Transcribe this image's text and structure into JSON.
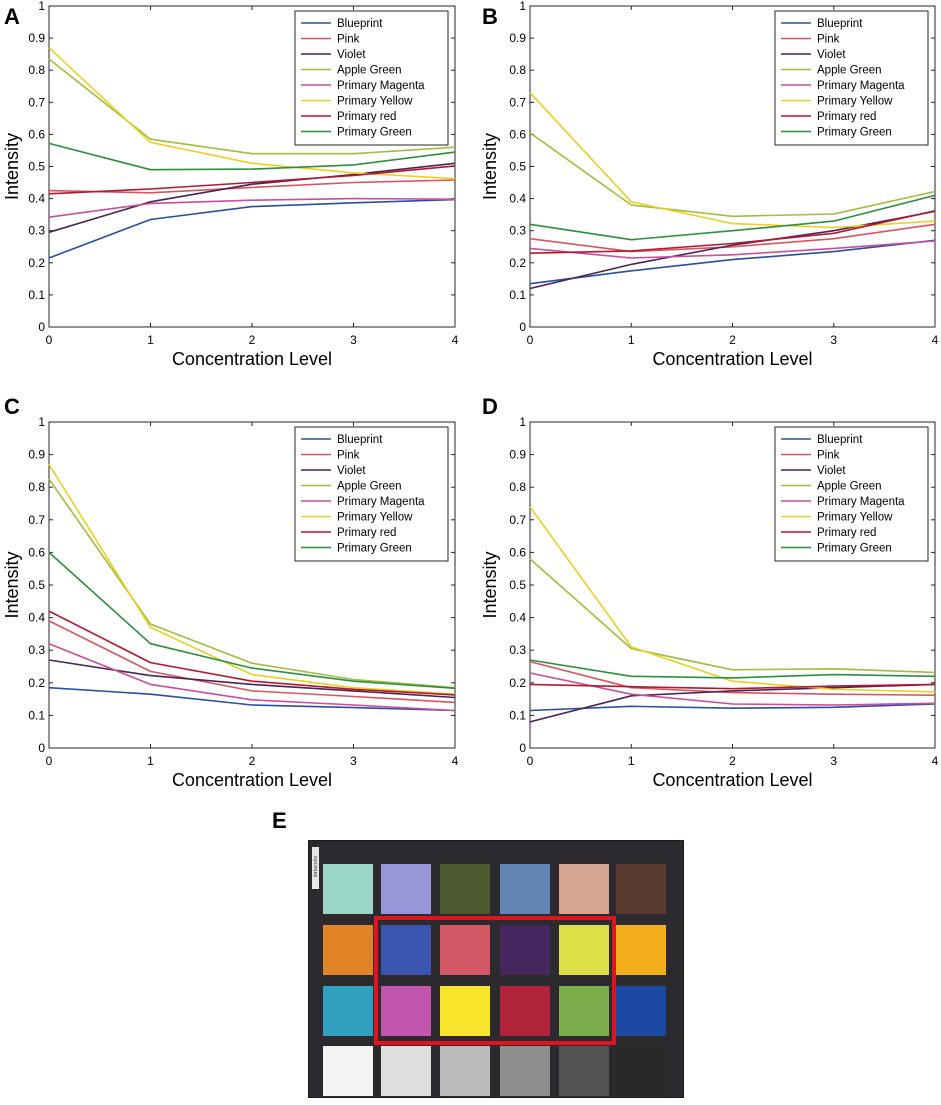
{
  "chart_data": [
    {
      "panel": "A",
      "type": "line",
      "xlabel": "Concentration Level",
      "ylabel": "Intensity",
      "x": [
        0,
        1,
        2,
        3,
        4
      ],
      "xlim": [
        0,
        4
      ],
      "ylim": [
        0,
        1
      ],
      "xticks": [
        "0",
        "1",
        "2",
        "3",
        "4"
      ],
      "yticks": [
        "0",
        "0.1",
        "0.2",
        "0.3",
        "0.4",
        "0.5",
        "0.6",
        "0.7",
        "0.8",
        "0.9",
        "1"
      ],
      "legend_position": "top-right",
      "series": [
        {
          "name": "Blueprint",
          "color": "#2b4ea0",
          "values": [
            0.215,
            0.335,
            0.375,
            0.387,
            0.397
          ]
        },
        {
          "name": "Pink",
          "color": "#d9545e",
          "values": [
            0.425,
            0.418,
            0.435,
            0.45,
            0.458
          ]
        },
        {
          "name": "Violet",
          "color": "#4a2356",
          "values": [
            0.295,
            0.39,
            0.445,
            0.475,
            0.51
          ]
        },
        {
          "name": "Apple Green",
          "color": "#9fbe3c",
          "values": [
            0.835,
            0.585,
            0.54,
            0.54,
            0.56
          ]
        },
        {
          "name": "Primary Magenta",
          "color": "#cc4c9e",
          "values": [
            0.342,
            0.385,
            0.395,
            0.4,
            0.398
          ]
        },
        {
          "name": "Primary Yellow",
          "color": "#ead020",
          "values": [
            0.87,
            0.575,
            0.51,
            0.48,
            0.462
          ]
        },
        {
          "name": "Primary red",
          "color": "#b5172f",
          "values": [
            0.415,
            0.43,
            0.45,
            0.472,
            0.502
          ]
        },
        {
          "name": "Primary Green",
          "color": "#2c8f3d",
          "values": [
            0.572,
            0.49,
            0.492,
            0.505,
            0.545
          ]
        }
      ]
    },
    {
      "panel": "B",
      "type": "line",
      "xlabel": "Concentration Level",
      "ylabel": "Intensity",
      "x": [
        0,
        1,
        2,
        3,
        4
      ],
      "xlim": [
        0,
        4
      ],
      "ylim": [
        0,
        1
      ],
      "xticks": [
        "0",
        "1",
        "2",
        "3",
        "4"
      ],
      "yticks": [
        "0",
        "0.1",
        "0.2",
        "0.3",
        "0.4",
        "0.5",
        "0.6",
        "0.7",
        "0.8",
        "0.9",
        "1"
      ],
      "legend_position": "top-right",
      "series": [
        {
          "name": "Blueprint",
          "color": "#2b4ea0",
          "values": [
            0.135,
            0.175,
            0.21,
            0.235,
            0.27
          ]
        },
        {
          "name": "Pink",
          "color": "#d9545e",
          "values": [
            0.275,
            0.235,
            0.25,
            0.275,
            0.32
          ]
        },
        {
          "name": "Violet",
          "color": "#4a2356",
          "values": [
            0.12,
            0.195,
            0.255,
            0.3,
            0.36
          ]
        },
        {
          "name": "Apple Green",
          "color": "#9fbe3c",
          "values": [
            0.605,
            0.38,
            0.345,
            0.352,
            0.422
          ]
        },
        {
          "name": "Primary Magenta",
          "color": "#cc4c9e",
          "values": [
            0.245,
            0.215,
            0.225,
            0.245,
            0.268
          ]
        },
        {
          "name": "Primary Yellow",
          "color": "#ead020",
          "values": [
            0.73,
            0.39,
            0.322,
            0.31,
            0.33
          ]
        },
        {
          "name": "Primary red",
          "color": "#b5172f",
          "values": [
            0.23,
            0.237,
            0.26,
            0.292,
            0.362
          ]
        },
        {
          "name": "Primary Green",
          "color": "#2c8f3d",
          "values": [
            0.32,
            0.272,
            0.3,
            0.33,
            0.41
          ]
        }
      ]
    },
    {
      "panel": "C",
      "type": "line",
      "xlabel": "Concentration Level",
      "ylabel": "Intensity",
      "x": [
        0,
        1,
        2,
        3,
        4
      ],
      "xlim": [
        0,
        4
      ],
      "ylim": [
        0,
        1
      ],
      "xticks": [
        "0",
        "1",
        "2",
        "3",
        "4"
      ],
      "yticks": [
        "0",
        "0.1",
        "0.2",
        "0.3",
        "0.4",
        "0.5",
        "0.6",
        "0.7",
        "0.8",
        "0.9",
        "1"
      ],
      "legend_position": "top-right",
      "series": [
        {
          "name": "Blueprint",
          "color": "#2b4ea0",
          "values": [
            0.185,
            0.165,
            0.132,
            0.124,
            0.115
          ]
        },
        {
          "name": "Pink",
          "color": "#d9545e",
          "values": [
            0.39,
            0.235,
            0.175,
            0.158,
            0.14
          ]
        },
        {
          "name": "Violet",
          "color": "#4a2356",
          "values": [
            0.27,
            0.222,
            0.195,
            0.175,
            0.155
          ]
        },
        {
          "name": "Apple Green",
          "color": "#9fbe3c",
          "values": [
            0.825,
            0.38,
            0.26,
            0.21,
            0.185
          ]
        },
        {
          "name": "Primary Magenta",
          "color": "#cc4c9e",
          "values": [
            0.32,
            0.195,
            0.148,
            0.132,
            0.115
          ]
        },
        {
          "name": "Primary Yellow",
          "color": "#ead020",
          "values": [
            0.87,
            0.37,
            0.225,
            0.185,
            0.165
          ]
        },
        {
          "name": "Primary red",
          "color": "#b5172f",
          "values": [
            0.42,
            0.262,
            0.205,
            0.18,
            0.163
          ]
        },
        {
          "name": "Primary Green",
          "color": "#2c8f3d",
          "values": [
            0.6,
            0.32,
            0.245,
            0.205,
            0.183
          ]
        }
      ]
    },
    {
      "panel": "D",
      "type": "line",
      "xlabel": "Concentration Level",
      "ylabel": "Intensity",
      "x": [
        0,
        1,
        2,
        3,
        4
      ],
      "xlim": [
        0,
        4
      ],
      "ylim": [
        0,
        1
      ],
      "xticks": [
        "0",
        "1",
        "2",
        "3",
        "4"
      ],
      "yticks": [
        "0",
        "0.1",
        "0.2",
        "0.3",
        "0.4",
        "0.5",
        "0.6",
        "0.7",
        "0.8",
        "0.9",
        "1"
      ],
      "legend_position": "top-right",
      "series": [
        {
          "name": "Blueprint",
          "color": "#2b4ea0",
          "values": [
            0.115,
            0.128,
            0.122,
            0.125,
            0.135
          ]
        },
        {
          "name": "Pink",
          "color": "#d9545e",
          "values": [
            0.265,
            0.185,
            0.17,
            0.165,
            0.162
          ]
        },
        {
          "name": "Violet",
          "color": "#4a2356",
          "values": [
            0.08,
            0.16,
            0.175,
            0.185,
            0.195
          ]
        },
        {
          "name": "Apple Green",
          "color": "#9fbe3c",
          "values": [
            0.58,
            0.305,
            0.24,
            0.243,
            0.232
          ]
        },
        {
          "name": "Primary Magenta",
          "color": "#cc4c9e",
          "values": [
            0.23,
            0.165,
            0.135,
            0.132,
            0.137
          ]
        },
        {
          "name": "Primary Yellow",
          "color": "#ead020",
          "values": [
            0.74,
            0.31,
            0.205,
            0.18,
            0.172
          ]
        },
        {
          "name": "Primary red",
          "color": "#b5172f",
          "values": [
            0.195,
            0.188,
            0.182,
            0.19,
            0.195
          ]
        },
        {
          "name": "Primary Green",
          "color": "#2c8f3d",
          "values": [
            0.27,
            0.22,
            0.215,
            0.225,
            0.22
          ]
        }
      ]
    }
  ],
  "checker": {
    "panel": "E",
    "brand_mark": "datacolor",
    "frame_color": "#e0141e",
    "highlighted_region": "rows 2-3, columns 2-5",
    "rows": [
      [
        "#9bd6c6",
        "#9796d6",
        "#4d5a30",
        "#6286b6",
        "#d5a592",
        "#5a3b32"
      ],
      [
        "#e08426",
        "#3a55b0",
        "#d25866",
        "#45275e",
        "#dee04a",
        "#f3ae1e"
      ],
      [
        "#30a0c0",
        "#c355ad",
        "#f8e52c",
        "#b1233a",
        "#7cae4b",
        "#1b48a2"
      ],
      [
        "#f4f4f2",
        "#e0dfdf",
        "#bdbcbd",
        "#8f8d8e",
        "#555454",
        "#2a2829"
      ]
    ]
  }
}
